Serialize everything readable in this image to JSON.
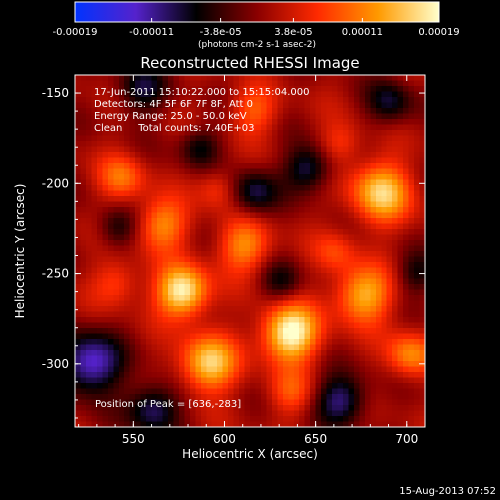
{
  "chart_data": {
    "type": "heatmap",
    "title": "Reconstructed RHESSI Image",
    "xlabel": "Heliocentric X (arcsec)",
    "ylabel": "Heliocentric Y (arcsec)",
    "xlim": [
      518,
      710
    ],
    "ylim": [
      -335,
      -140
    ],
    "x_ticks": [
      "550",
      "600",
      "650",
      "700"
    ],
    "x_tick_values": [
      550,
      600,
      650,
      700
    ],
    "y_ticks": [
      "-150",
      "-200",
      "-250",
      "-300"
    ],
    "y_tick_values": [
      -150,
      -200,
      -250,
      -300
    ],
    "colorbar": {
      "min": -0.00019,
      "max": 0.00019,
      "ticks": [
        "-0.00019",
        "-0.00011",
        "-3.8e-05",
        "3.8e-05",
        "0.00011",
        "0.00019"
      ],
      "tick_values": [
        -0.00019,
        -0.00011,
        -3.8e-05,
        3.8e-05,
        0.00011,
        0.00019
      ],
      "unit_label": "(photons cm-2 s-1 asec-2)",
      "colors": [
        "#0033ff",
        "#5522cc",
        "#000000",
        "#8a0000",
        "#ff2a00",
        "#ff9a00",
        "#ffffcc"
      ]
    },
    "info_lines": [
      "17-Jun-2011 15:10:22.000 to 15:15:04.000",
      "Detectors: 4F 5F 6F 7F 8F, Att 0",
      "Energy Range: 25.0 - 50.0 keV",
      "Clean     Total counts: 7.40E+03"
    ],
    "peak_label": "Position of Peak = [636,-283]",
    "peak": [
      636,
      -283
    ],
    "sources": [
      {
        "x": 636,
        "y": -283,
        "amp": 1.0,
        "sigma": 11
      },
      {
        "x": 577,
        "y": -260,
        "amp": 0.95,
        "sigma": 10
      },
      {
        "x": 591,
        "y": -300,
        "amp": 0.8,
        "sigma": 11
      },
      {
        "x": 686,
        "y": -205,
        "amp": 0.75,
        "sigma": 12
      },
      {
        "x": 676,
        "y": -262,
        "amp": 0.7,
        "sigma": 11
      },
      {
        "x": 566,
        "y": -223,
        "amp": 0.55,
        "sigma": 10
      },
      {
        "x": 611,
        "y": -235,
        "amp": 0.55,
        "sigma": 10
      },
      {
        "x": 702,
        "y": -295,
        "amp": 0.55,
        "sigma": 9
      },
      {
        "x": 544,
        "y": -197,
        "amp": 0.45,
        "sigma": 9
      },
      {
        "x": 541,
        "y": -255,
        "amp": 0.35,
        "sigma": 9
      },
      {
        "x": 616,
        "y": -160,
        "amp": 0.4,
        "sigma": 9
      },
      {
        "x": 636,
        "y": -316,
        "amp": 0.35,
        "sigma": 9
      },
      {
        "x": 661,
        "y": -238,
        "amp": 0.3,
        "sigma": 8
      },
      {
        "x": 596,
        "y": -203,
        "amp": 0.3,
        "sigma": 8
      },
      {
        "x": 664,
        "y": -178,
        "amp": 0.3,
        "sigma": 8
      },
      {
        "x": 554,
        "y": -148,
        "amp": -0.45,
        "sigma": 10
      },
      {
        "x": 526,
        "y": -300,
        "amp": -0.8,
        "sigma": 12
      },
      {
        "x": 646,
        "y": -192,
        "amp": -0.55,
        "sigma": 9
      },
      {
        "x": 616,
        "y": -205,
        "amp": -0.5,
        "sigma": 9
      },
      {
        "x": 664,
        "y": -320,
        "amp": -0.6,
        "sigma": 10
      },
      {
        "x": 561,
        "y": -325,
        "amp": -0.6,
        "sigma": 10
      },
      {
        "x": 691,
        "y": -155,
        "amp": -0.45,
        "sigma": 9
      },
      {
        "x": 631,
        "y": -255,
        "amp": -0.35,
        "sigma": 8
      },
      {
        "x": 586,
        "y": -180,
        "amp": -0.4,
        "sigma": 8
      },
      {
        "x": 541,
        "y": -225,
        "amp": -0.35,
        "sigma": 8
      },
      {
        "x": 706,
        "y": -250,
        "amp": -0.35,
        "sigma": 8
      }
    ]
  },
  "footer": {
    "timestamp": "15-Aug-2013 07:52"
  }
}
